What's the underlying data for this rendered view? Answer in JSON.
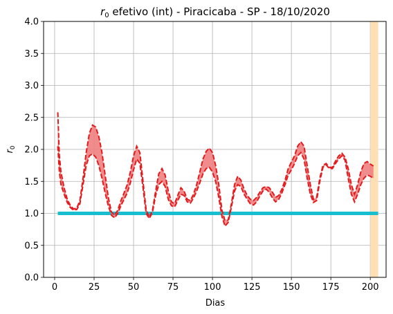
{
  "chart_data": {
    "type": "line",
    "title": "r0 efetivo (int) - Piracicaba - SP - 18/10/2020",
    "title_prefix": "r",
    "title_subscript": "0",
    "title_rest": " efetivo (int) - Piracicaba - SP - 18/10/2020",
    "xlabel": "Dias",
    "ylabel_base": "r",
    "ylabel_subscript": "0",
    "xlim": [
      -7,
      210
    ],
    "ylim": [
      0,
      4
    ],
    "grid": true,
    "x_ticks": [
      0,
      25,
      50,
      75,
      100,
      125,
      150,
      175,
      200
    ],
    "x_tick_labels": [
      "0",
      "25",
      "50",
      "75",
      "100",
      "125",
      "150",
      "175",
      "200"
    ],
    "y_ticks": [
      0,
      0.5,
      1,
      1.5,
      2,
      2.5,
      3,
      3.5,
      4
    ],
    "y_tick_labels": [
      "0.0",
      "0.5",
      "1.0",
      "1.5",
      "2.0",
      "2.5",
      "3.0",
      "3.5",
      "4.0"
    ],
    "colors": {
      "band": "#f08080",
      "bounds": "#e41a1c",
      "threshold": "#17becf",
      "highlight": "#ffdfb3"
    },
    "threshold": {
      "y": 1.0,
      "x_start": 2,
      "x_end": 205
    },
    "highlight_region": {
      "x_start": 200,
      "x_end": 205
    },
    "series": [
      {
        "role": "upper",
        "x": [
          2,
          3,
          4,
          6,
          8,
          10,
          12,
          14,
          16,
          18,
          20,
          22,
          24,
          26,
          28,
          30,
          32,
          34,
          36,
          38,
          40,
          42,
          44,
          46,
          48,
          50,
          52,
          54,
          56,
          58,
          60,
          62,
          64,
          66,
          68,
          70,
          72,
          74,
          76,
          78,
          80,
          82,
          84,
          86,
          88,
          90,
          92,
          94,
          96,
          98,
          100,
          102,
          104,
          106,
          108,
          110,
          112,
          114,
          116,
          118,
          120,
          122,
          124,
          126,
          128,
          130,
          132,
          134,
          136,
          138,
          140,
          142,
          144,
          146,
          148,
          150,
          152,
          154,
          156,
          158,
          160,
          162,
          164,
          166,
          168,
          170,
          172,
          174,
          176,
          178,
          180,
          182,
          184,
          186,
          188,
          190,
          192,
          194,
          196,
          198,
          200,
          202
        ],
        "y": [
          2.58,
          1.9,
          1.65,
          1.4,
          1.22,
          1.12,
          1.07,
          1.08,
          1.2,
          1.55,
          1.95,
          2.25,
          2.38,
          2.35,
          2.2,
          1.95,
          1.6,
          1.25,
          1.02,
          0.97,
          1.05,
          1.2,
          1.32,
          1.45,
          1.65,
          1.9,
          2.05,
          1.95,
          1.5,
          1.05,
          0.94,
          1.05,
          1.35,
          1.62,
          1.7,
          1.6,
          1.35,
          1.18,
          1.15,
          1.28,
          1.4,
          1.35,
          1.22,
          1.2,
          1.3,
          1.45,
          1.65,
          1.85,
          1.97,
          2.02,
          1.95,
          1.75,
          1.45,
          1.05,
          0.88,
          0.9,
          1.15,
          1.45,
          1.58,
          1.52,
          1.38,
          1.28,
          1.22,
          1.2,
          1.25,
          1.33,
          1.4,
          1.42,
          1.4,
          1.33,
          1.25,
          1.28,
          1.38,
          1.52,
          1.7,
          1.8,
          1.9,
          2.05,
          2.12,
          2.05,
          1.75,
          1.45,
          1.22,
          1.25,
          1.55,
          1.75,
          1.78,
          1.72,
          1.72,
          1.82,
          1.9,
          1.94,
          1.88,
          1.7,
          1.45,
          1.3,
          1.45,
          1.65,
          1.78,
          1.81,
          1.77,
          1.74
        ]
      },
      {
        "role": "lower",
        "x": [
          2,
          3,
          4,
          6,
          8,
          10,
          12,
          14,
          16,
          18,
          20,
          22,
          24,
          26,
          28,
          30,
          32,
          34,
          36,
          38,
          40,
          42,
          44,
          46,
          48,
          50,
          52,
          54,
          56,
          58,
          60,
          62,
          64,
          66,
          68,
          70,
          72,
          74,
          76,
          78,
          80,
          82,
          84,
          86,
          88,
          90,
          92,
          94,
          96,
          98,
          100,
          102,
          104,
          106,
          108,
          110,
          112,
          114,
          116,
          118,
          120,
          122,
          124,
          126,
          128,
          130,
          132,
          134,
          136,
          138,
          140,
          142,
          144,
          146,
          148,
          150,
          152,
          154,
          156,
          158,
          160,
          162,
          164,
          166,
          168,
          170,
          172,
          174,
          176,
          178,
          180,
          182,
          184,
          186,
          188,
          190,
          192,
          194,
          196,
          198,
          200,
          202
        ],
        "y": [
          2.05,
          1.65,
          1.45,
          1.3,
          1.17,
          1.09,
          1.05,
          1.06,
          1.15,
          1.45,
          1.75,
          1.9,
          1.93,
          1.88,
          1.75,
          1.55,
          1.32,
          1.12,
          0.97,
          0.93,
          1.0,
          1.12,
          1.22,
          1.32,
          1.48,
          1.68,
          1.85,
          1.78,
          1.4,
          1.0,
          0.92,
          1.02,
          1.28,
          1.45,
          1.5,
          1.42,
          1.22,
          1.12,
          1.1,
          1.2,
          1.3,
          1.28,
          1.18,
          1.16,
          1.24,
          1.35,
          1.48,
          1.62,
          1.7,
          1.72,
          1.65,
          1.5,
          1.25,
          0.95,
          0.8,
          0.86,
          1.1,
          1.35,
          1.45,
          1.42,
          1.3,
          1.22,
          1.15,
          1.13,
          1.18,
          1.27,
          1.35,
          1.38,
          1.33,
          1.24,
          1.18,
          1.22,
          1.32,
          1.45,
          1.6,
          1.68,
          1.78,
          1.9,
          1.95,
          1.85,
          1.55,
          1.3,
          1.17,
          1.2,
          1.5,
          1.72,
          1.76,
          1.7,
          1.7,
          1.78,
          1.85,
          1.9,
          1.83,
          1.55,
          1.3,
          1.18,
          1.3,
          1.45,
          1.55,
          1.6,
          1.58,
          1.55
        ]
      }
    ]
  }
}
